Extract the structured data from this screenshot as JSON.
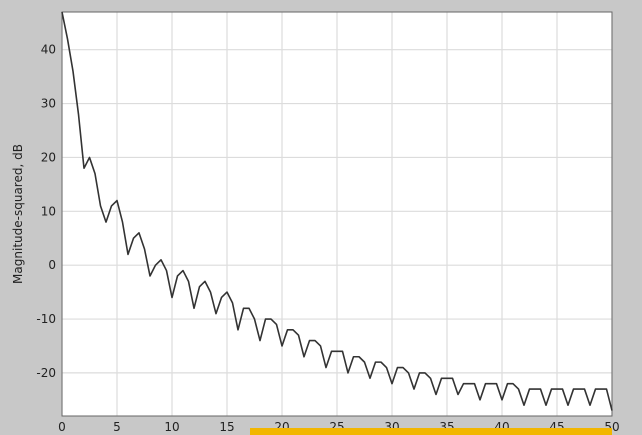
{
  "chart_data": {
    "type": "line",
    "title": "",
    "xlabel": "",
    "ylabel": "Magnitude-squared, dB",
    "xlim": [
      0,
      50
    ],
    "ylim": [
      -28,
      47
    ],
    "xticks": [
      0,
      5,
      10,
      15,
      20,
      25,
      30,
      35,
      40,
      45,
      50
    ],
    "xtick_labels": [
      "0",
      "5",
      "10",
      "15",
      "20",
      "25",
      "30",
      "35",
      "40",
      "45",
      "50"
    ],
    "yticks": [
      40,
      30,
      20,
      10,
      0,
      -10,
      -20
    ],
    "ytick_labels": [
      "40",
      "30",
      "20",
      "10",
      "0",
      "-10",
      "-20"
    ],
    "grid": true,
    "legend": "none",
    "colors": {
      "line": "#333333",
      "plot_background": "#ffffff",
      "grid": "#dcdcdc",
      "frame_background": "#c8c8c8",
      "accent_bar": "#f2b600"
    },
    "series": [
      {
        "x": [
          0,
          0.5,
          1,
          1.5,
          2,
          2.5,
          3,
          3.5,
          4,
          4.5,
          5,
          5.5,
          6,
          6.5,
          7,
          7.5,
          8,
          8.5,
          9,
          9.5,
          10,
          10.5,
          11,
          11.5,
          12,
          12.5,
          13,
          13.5,
          14,
          14.5,
          15,
          15.5,
          16,
          16.5,
          17,
          17.5,
          18,
          18.5,
          19,
          19.5,
          20,
          20.5,
          21,
          21.5,
          22,
          22.5,
          23,
          23.5,
          24,
          24.5,
          25,
          25.5,
          26,
          26.5,
          27,
          27.5,
          28,
          28.5,
          29,
          29.5,
          30,
          30.5,
          31,
          31.5,
          32,
          32.5,
          33,
          33.5,
          34,
          34.5,
          35,
          35.5,
          36,
          36.5,
          37,
          37.5,
          38,
          38.5,
          39,
          39.5,
          40,
          40.5,
          41,
          41.5,
          42,
          42.5,
          43,
          43.5,
          44,
          44.5,
          45,
          45.5,
          46,
          46.5,
          47,
          47.5,
          48,
          48.5,
          49,
          49.5,
          50
        ],
        "values": [
          47,
          42,
          36,
          28,
          18,
          20,
          17,
          11,
          8,
          11,
          12,
          8,
          2,
          5,
          6,
          3,
          -2,
          0,
          1,
          -1,
          -6,
          -2,
          -1,
          -3,
          -8,
          -4,
          -3,
          -5,
          -9,
          -6,
          -5,
          -7,
          -12,
          -8,
          -8,
          -10,
          -14,
          -10,
          -10,
          -11,
          -15,
          -12,
          -12,
          -13,
          -17,
          -14,
          -14,
          -15,
          -19,
          -16,
          -16,
          -16,
          -20,
          -17,
          -17,
          -18,
          -21,
          -18,
          -18,
          -19,
          -22,
          -19,
          -19,
          -20,
          -23,
          -20,
          -20,
          -21,
          -24,
          -21,
          -21,
          -21,
          -24,
          -22,
          -22,
          -22,
          -25,
          -22,
          -22,
          -22,
          -25,
          -22,
          -22,
          -23,
          -26,
          -23,
          -23,
          -23,
          -26,
          -23,
          -23,
          -23,
          -26,
          -23,
          -23,
          -23,
          -26,
          -23,
          -23,
          -23,
          -27
        ]
      }
    ]
  }
}
